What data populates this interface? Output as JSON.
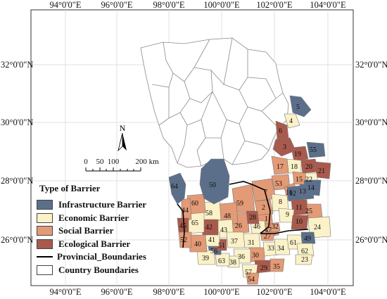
{
  "map": {
    "lon_labels_top": [
      "94°0'0\"E",
      "96°0'0\"E",
      "98°0'0\"E",
      "100°0'0\"E",
      "102°0'0\"E",
      "104°0'0\"E"
    ],
    "lon_labels_bottom": [
      "94°0'0\"E",
      "96°0'0\"E",
      "98°0'0\"E",
      "100°0'0\"E",
      "102°0'0\"E",
      "104°0'0\"E"
    ],
    "lat_labels_left": [
      "32°0'0\"N",
      "30°0'0\"N",
      "28°0'0\"N",
      "26°0'0\"N"
    ],
    "lat_labels_right": [
      "32°0'0\"N",
      "30°0'0\"N",
      "28°0'0\"N",
      "26°0'0\"N"
    ],
    "north_label": "N",
    "scale_labels": [
      "0",
      "50",
      "100",
      "200 km"
    ]
  },
  "colors": {
    "infrastructure": "#5b6f8a",
    "economic": "#fbf2c8",
    "social": "#e39a76",
    "ecological": "#a85a4c",
    "country": "#ffffff"
  },
  "legend": {
    "title": "Type of Barrier",
    "items": [
      {
        "label": "Infrastructure Barrier",
        "kind": "swatch",
        "color": "#5b6f8a"
      },
      {
        "label": "Economic Barrier",
        "kind": "swatch",
        "color": "#fbf2c8"
      },
      {
        "label": "Social Barrier",
        "kind": "swatch",
        "color": "#e39a76"
      },
      {
        "label": "Ecological Barrier",
        "kind": "swatch",
        "color": "#a85a4c"
      },
      {
        "label": "Provincial_Boundaries",
        "kind": "line",
        "color": "#000000"
      },
      {
        "label": "Country Boundaries",
        "kind": "swatch",
        "color": "#ffffff"
      }
    ]
  },
  "counties": [
    {
      "id": "1",
      "type": "social"
    },
    {
      "id": "2",
      "type": "social"
    },
    {
      "id": "3",
      "type": "ecological"
    },
    {
      "id": "4",
      "type": "economic"
    },
    {
      "id": "5",
      "type": "infrastructure"
    },
    {
      "id": "6",
      "type": "ecological"
    },
    {
      "id": "7",
      "type": "social"
    },
    {
      "id": "8",
      "type": "economic"
    },
    {
      "id": "9",
      "type": "economic"
    },
    {
      "id": "10",
      "type": "ecological"
    },
    {
      "id": "11",
      "type": "ecological"
    },
    {
      "id": "12",
      "type": "infrastructure"
    },
    {
      "id": "13",
      "type": "infrastructure"
    },
    {
      "id": "14",
      "type": "infrastructure"
    },
    {
      "id": "15",
      "type": "social"
    },
    {
      "id": "16",
      "type": "social"
    },
    {
      "id": "17",
      "type": "social"
    },
    {
      "id": "18",
      "type": "economic"
    },
    {
      "id": "19",
      "type": "ecological"
    },
    {
      "id": "20",
      "type": "ecological"
    },
    {
      "id": "21",
      "type": "ecological"
    },
    {
      "id": "22",
      "type": "economic"
    },
    {
      "id": "23",
      "type": "economic"
    },
    {
      "id": "24",
      "type": "economic"
    },
    {
      "id": "25",
      "type": "social"
    },
    {
      "id": "26",
      "type": "social"
    },
    {
      "id": "27",
      "type": "social"
    },
    {
      "id": "28",
      "type": "ecological"
    },
    {
      "id": "29",
      "type": "ecological"
    },
    {
      "id": "30",
      "type": "social"
    },
    {
      "id": "31",
      "type": "economic"
    },
    {
      "id": "32",
      "type": "social"
    },
    {
      "id": "33",
      "type": "economic"
    },
    {
      "id": "34",
      "type": "economic"
    },
    {
      "id": "35",
      "type": "social"
    },
    {
      "id": "36",
      "type": "economic"
    },
    {
      "id": "37",
      "type": "economic"
    },
    {
      "id": "38",
      "type": "economic"
    },
    {
      "id": "39",
      "type": "economic"
    },
    {
      "id": "40",
      "type": "social"
    },
    {
      "id": "41",
      "type": "economic"
    },
    {
      "id": "42",
      "type": "ecological"
    },
    {
      "id": "43",
      "type": "economic"
    },
    {
      "id": "44",
      "type": "social"
    },
    {
      "id": "45",
      "type": "ecological"
    },
    {
      "id": "46",
      "type": "economic"
    },
    {
      "id": "47",
      "type": "social"
    },
    {
      "id": "48",
      "type": "social"
    },
    {
      "id": "49",
      "type": "infrastructure"
    },
    {
      "id": "50",
      "type": "infrastructure"
    },
    {
      "id": "51",
      "type": "ecological"
    },
    {
      "id": "52",
      "type": "social"
    },
    {
      "id": "53",
      "type": "social"
    },
    {
      "id": "54",
      "type": "social"
    },
    {
      "id": "55",
      "type": "infrastructure"
    },
    {
      "id": "56",
      "type": "infrastructure"
    },
    {
      "id": "57",
      "type": "economic"
    },
    {
      "id": "58",
      "type": "economic"
    },
    {
      "id": "59",
      "type": "social"
    },
    {
      "id": "60",
      "type": "social"
    },
    {
      "id": "61",
      "type": "economic"
    },
    {
      "id": "62",
      "type": "economic"
    },
    {
      "id": "63",
      "type": "economic"
    },
    {
      "id": "64",
      "type": "infrastructure"
    },
    {
      "id": "65",
      "type": "economic"
    }
  ]
}
